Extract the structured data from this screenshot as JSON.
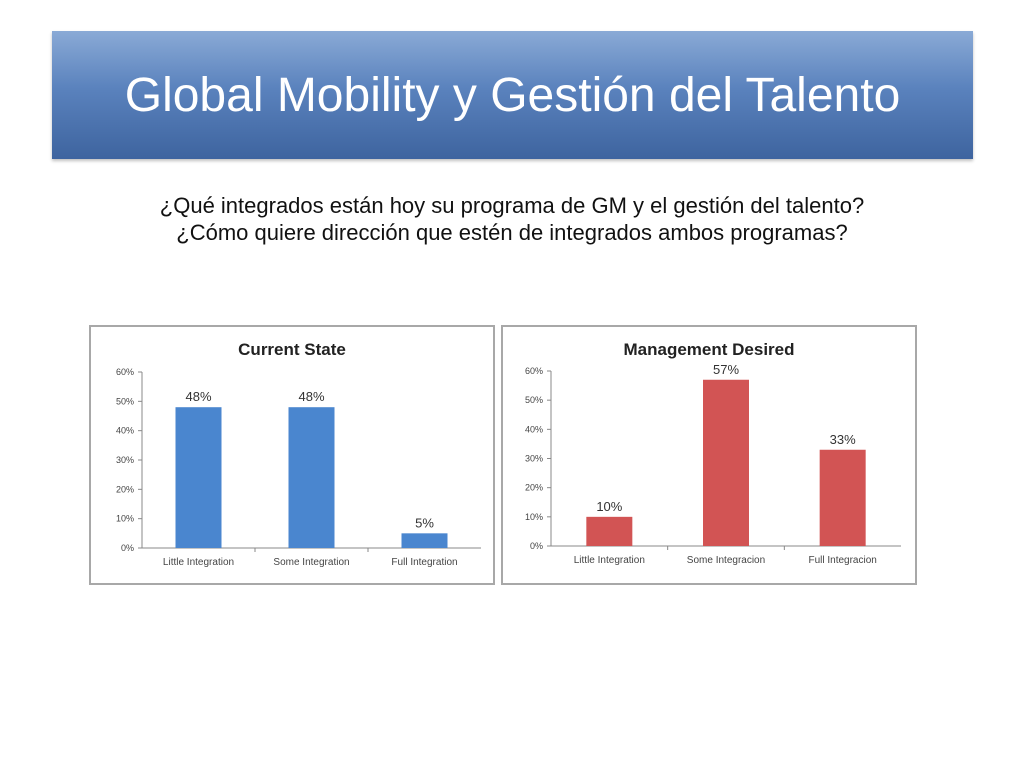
{
  "slide": {
    "title": "Global Mobility y Gestión del Talento",
    "question_1": "¿Qué integrados están hoy su programa de GM y el gestión del talento?",
    "question_2": "¿Cómo quiere dirección que estén de integrados ambos programas?"
  },
  "chart_data": [
    {
      "type": "bar",
      "title": "Current State",
      "categories": [
        "Little Integration",
        "Some Integration",
        "Full Integration"
      ],
      "values": [
        48,
        48,
        5
      ],
      "data_labels": [
        "48%",
        "48%",
        "5%"
      ],
      "unit": "%",
      "ylim": [
        0,
        60
      ],
      "yticks": [
        0,
        10,
        20,
        30,
        40,
        50,
        60
      ],
      "ytick_labels": [
        "0%",
        "10%",
        "20%",
        "30%",
        "40%",
        "50%",
        "60%"
      ],
      "color": "#4a86cf",
      "grid": false,
      "legend": "none"
    },
    {
      "type": "bar",
      "title": "Management Desired",
      "categories": [
        "Little Integration",
        "Some Integracion",
        "Full Integracion"
      ],
      "values": [
        10,
        57,
        33
      ],
      "data_labels": [
        "10%",
        "57%",
        "33%"
      ],
      "unit": "%",
      "ylim": [
        0,
        60
      ],
      "yticks": [
        0,
        10,
        20,
        30,
        40,
        50,
        60
      ],
      "ytick_labels": [
        "0%",
        "10%",
        "20%",
        "30%",
        "40%",
        "50%",
        "60%"
      ],
      "color": "#d25454",
      "grid": false,
      "legend": "none"
    }
  ]
}
